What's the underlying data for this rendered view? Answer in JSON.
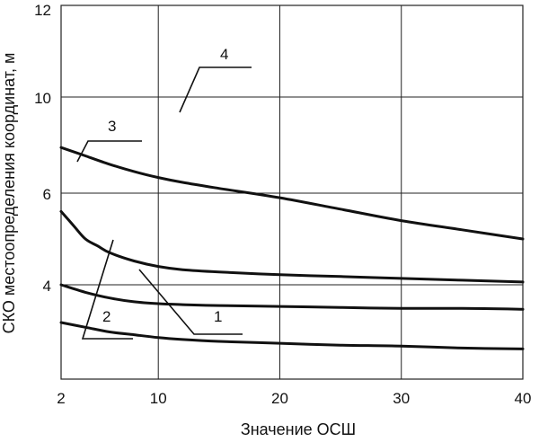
{
  "chart_data": {
    "type": "line",
    "title": "",
    "xlabel": "Значение ОСШ",
    "ylabel": "СКО местоопределения координат, м",
    "x_ticks": [
      2,
      10,
      20,
      30,
      40
    ],
    "y_tick_labels": [
      "12",
      "10",
      "6",
      "4"
    ],
    "xlim": [
      2,
      40
    ],
    "grid": true,
    "series": [
      {
        "name": "1",
        "x": [
          2,
          4,
          6,
          8,
          10,
          12,
          15,
          20,
          25,
          30,
          35,
          40
        ],
        "y": [
          3.6,
          3.55,
          3.5,
          3.47,
          3.44,
          3.42,
          3.4,
          3.38,
          3.36,
          3.35,
          3.33,
          3.32
        ]
      },
      {
        "name": "2",
        "x": [
          2,
          4,
          6,
          8,
          10,
          12,
          15,
          20,
          25,
          30,
          35,
          40
        ],
        "y": [
          4.0,
          3.92,
          3.86,
          3.82,
          3.8,
          3.79,
          3.78,
          3.77,
          3.76,
          3.75,
          3.75,
          3.74
        ]
      },
      {
        "name": "3",
        "x": [
          2,
          3,
          4,
          5,
          6,
          8,
          10,
          12,
          15,
          20,
          25,
          30,
          35,
          40
        ],
        "y": [
          5.6,
          5.3,
          5.0,
          4.85,
          4.7,
          4.52,
          4.4,
          4.33,
          4.28,
          4.22,
          4.18,
          4.14,
          4.1,
          4.06
        ]
      },
      {
        "name": "4",
        "x": [
          2,
          4,
          6,
          8,
          10,
          12,
          15,
          20,
          25,
          30,
          35,
          40
        ],
        "y": [
          7.9,
          7.55,
          7.2,
          6.9,
          6.65,
          6.45,
          6.2,
          5.9,
          5.65,
          5.4,
          5.2,
          5.0
        ]
      }
    ]
  }
}
